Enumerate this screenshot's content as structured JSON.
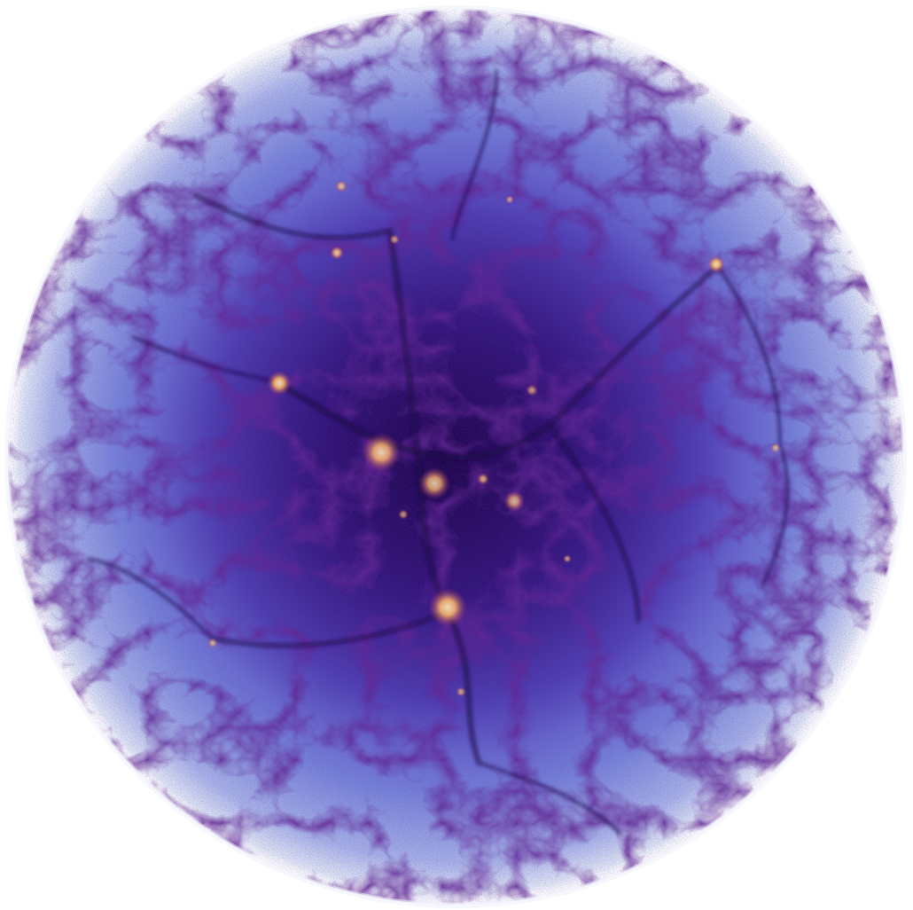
{
  "image": {
    "background_color": "#ffffff",
    "palette": {
      "outer_halo": "#dfe6f5",
      "outer_blue": "#8e9fe0",
      "mid_blue": "#6a72d2",
      "inner_purple": "#4a2ea0",
      "deep_purple": "#2c0f6e",
      "filament": "#24084f",
      "hot_core": "#f7b26a",
      "hot_glow": "#e0704a"
    }
  }
}
